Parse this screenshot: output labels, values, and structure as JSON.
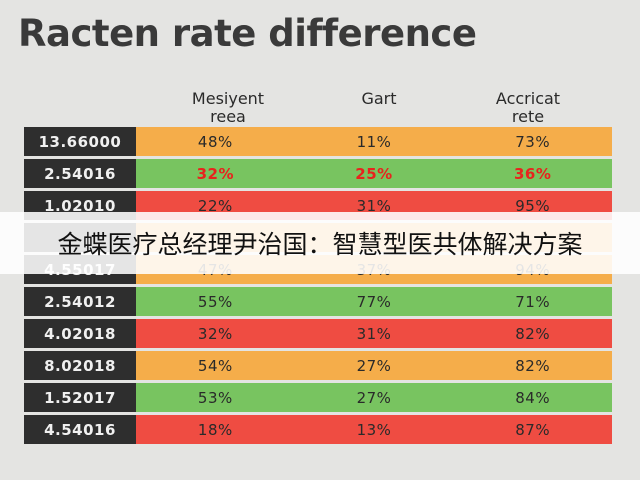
{
  "chart_data": {
    "type": "table",
    "title": "Racten rate difference",
    "columns": [
      "Mesiyent\nreea",
      "Gart",
      "Accricat\nrete"
    ],
    "rows": [
      {
        "id": "13.66000",
        "values": [
          "48%",
          "11%",
          "73%"
        ],
        "color": "orange",
        "highlight": false
      },
      {
        "id": "2.54016",
        "values": [
          "32%",
          "25%",
          "36%"
        ],
        "color": "green",
        "highlight": true
      },
      {
        "id": "1.02010",
        "values": [
          "22%",
          "31%",
          "95%"
        ],
        "color": "red",
        "highlight": false
      },
      {
        "id": "",
        "values": [
          "",
          "",
          ""
        ],
        "color": "orange",
        "highlight": false
      },
      {
        "id": "4.55017",
        "values": [
          "47%",
          "37%",
          "94%"
        ],
        "color": "orange",
        "highlight": false
      },
      {
        "id": "2.54012",
        "values": [
          "55%",
          "77%",
          "71%"
        ],
        "color": "green",
        "highlight": false
      },
      {
        "id": "4.02018",
        "values": [
          "32%",
          "31%",
          "82%"
        ],
        "color": "red",
        "highlight": false
      },
      {
        "id": "8.02018",
        "values": [
          "54%",
          "27%",
          "82%"
        ],
        "color": "orange",
        "highlight": false
      },
      {
        "id": "1.52017",
        "values": [
          "53%",
          "27%",
          "84%"
        ],
        "color": "green",
        "highlight": false
      },
      {
        "id": "4.54016",
        "values": [
          "18%",
          "13%",
          "87%"
        ],
        "color": "red",
        "highlight": false
      }
    ]
  },
  "banner": {
    "text": "金蝶医疗总经理尹治国：智慧型医共体解决方案"
  },
  "colors": {
    "orange": "#f5ad4a",
    "green": "#78c460",
    "red": "#ef4c42",
    "highlight": "#e8231d",
    "id_bg": "#2e2e2e"
  }
}
